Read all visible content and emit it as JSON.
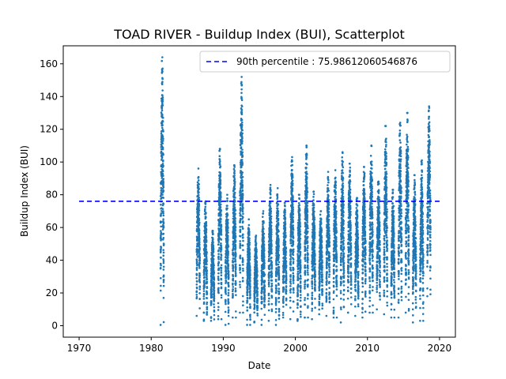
{
  "chart_data": {
    "type": "scatter",
    "title": "TOAD RIVER - Buildup Index (BUI), Scatterplot",
    "xlabel": "Date",
    "ylabel": "Buildup Index (BUI)",
    "xlim": [
      1967.8,
      2022.2
    ],
    "ylim": [
      -7,
      171
    ],
    "xticks": [
      1970,
      1980,
      1990,
      2000,
      2010,
      2020
    ],
    "yticks": [
      0,
      20,
      40,
      60,
      80,
      100,
      120,
      140,
      160
    ],
    "point_color": "#1f77b4",
    "grid": false,
    "legend_position": "upper right",
    "reference_line": {
      "label": "90th percentile : 75.98612060546876",
      "value": 75.98612060546876,
      "x_range": [
        1970,
        2020
      ],
      "color": "#0000ff",
      "style": "dashed"
    },
    "seasons": [
      {
        "year": 1981,
        "min": 0.5,
        "max": 164
      },
      {
        "year": 1986,
        "min": 6,
        "max": 96
      },
      {
        "year": 1987,
        "min": 3,
        "max": 76
      },
      {
        "year": 1988,
        "min": 3,
        "max": 58
      },
      {
        "year": 1989,
        "min": 4,
        "max": 108
      },
      {
        "year": 1990,
        "min": 0.5,
        "max": 80
      },
      {
        "year": 1991,
        "min": 5,
        "max": 98
      },
      {
        "year": 1992,
        "min": 8,
        "max": 152
      },
      {
        "year": 1993,
        "min": 0.5,
        "max": 65
      },
      {
        "year": 1994,
        "min": 2,
        "max": 55
      },
      {
        "year": 1995,
        "min": 0.5,
        "max": 70
      },
      {
        "year": 1996,
        "min": 3,
        "max": 86
      },
      {
        "year": 1997,
        "min": 0.5,
        "max": 84
      },
      {
        "year": 1998,
        "min": 5,
        "max": 75
      },
      {
        "year": 1999,
        "min": 4,
        "max": 103
      },
      {
        "year": 2000,
        "min": 3,
        "max": 80
      },
      {
        "year": 2001,
        "min": 5,
        "max": 110
      },
      {
        "year": 2002,
        "min": 4,
        "max": 82
      },
      {
        "year": 2003,
        "min": 7,
        "max": 70
      },
      {
        "year": 2004,
        "min": 6,
        "max": 94
      },
      {
        "year": 2005,
        "min": 5,
        "max": 95
      },
      {
        "year": 2006,
        "min": 2,
        "max": 106
      },
      {
        "year": 2007,
        "min": 8,
        "max": 99
      },
      {
        "year": 2008,
        "min": 6,
        "max": 78
      },
      {
        "year": 2009,
        "min": 5,
        "max": 97
      },
      {
        "year": 2010,
        "min": 8,
        "max": 110
      },
      {
        "year": 2011,
        "min": 10,
        "max": 88
      },
      {
        "year": 2012,
        "min": 7,
        "max": 122
      },
      {
        "year": 2013,
        "min": 5,
        "max": 83
      },
      {
        "year": 2014,
        "min": 5,
        "max": 124
      },
      {
        "year": 2015,
        "min": 8,
        "max": 130
      },
      {
        "year": 2016,
        "min": 2,
        "max": 92
      },
      {
        "year": 2017,
        "min": 3,
        "max": 101
      },
      {
        "year": 2018,
        "min": 18,
        "max": 134
      }
    ]
  }
}
